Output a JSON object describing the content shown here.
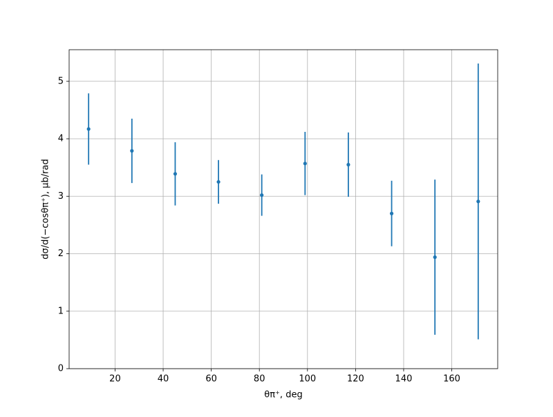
{
  "chart_data": {
    "type": "errorbar",
    "xlabel": "θπ⁺, deg",
    "ylabel": "dσ/d(−cosθπ⁺), μb/rad",
    "x": [
      9,
      27,
      45,
      63,
      81,
      99,
      117,
      135,
      153,
      171
    ],
    "series": [
      {
        "color": "#1f77b4",
        "values": [
          4.17,
          3.79,
          3.39,
          3.25,
          3.02,
          3.57,
          3.55,
          2.7,
          1.94,
          2.91
        ],
        "errors": [
          0.62,
          0.56,
          0.55,
          0.38,
          0.36,
          0.55,
          0.56,
          0.57,
          1.35,
          2.4
        ]
      }
    ],
    "xlim": [
      0.9,
      179.1
    ],
    "ylim": [
      0,
      5.55
    ],
    "xticks": [
      20,
      40,
      60,
      80,
      100,
      120,
      140,
      160
    ],
    "yticks": [
      0,
      1,
      2,
      3,
      4,
      5
    ],
    "grid": true
  }
}
